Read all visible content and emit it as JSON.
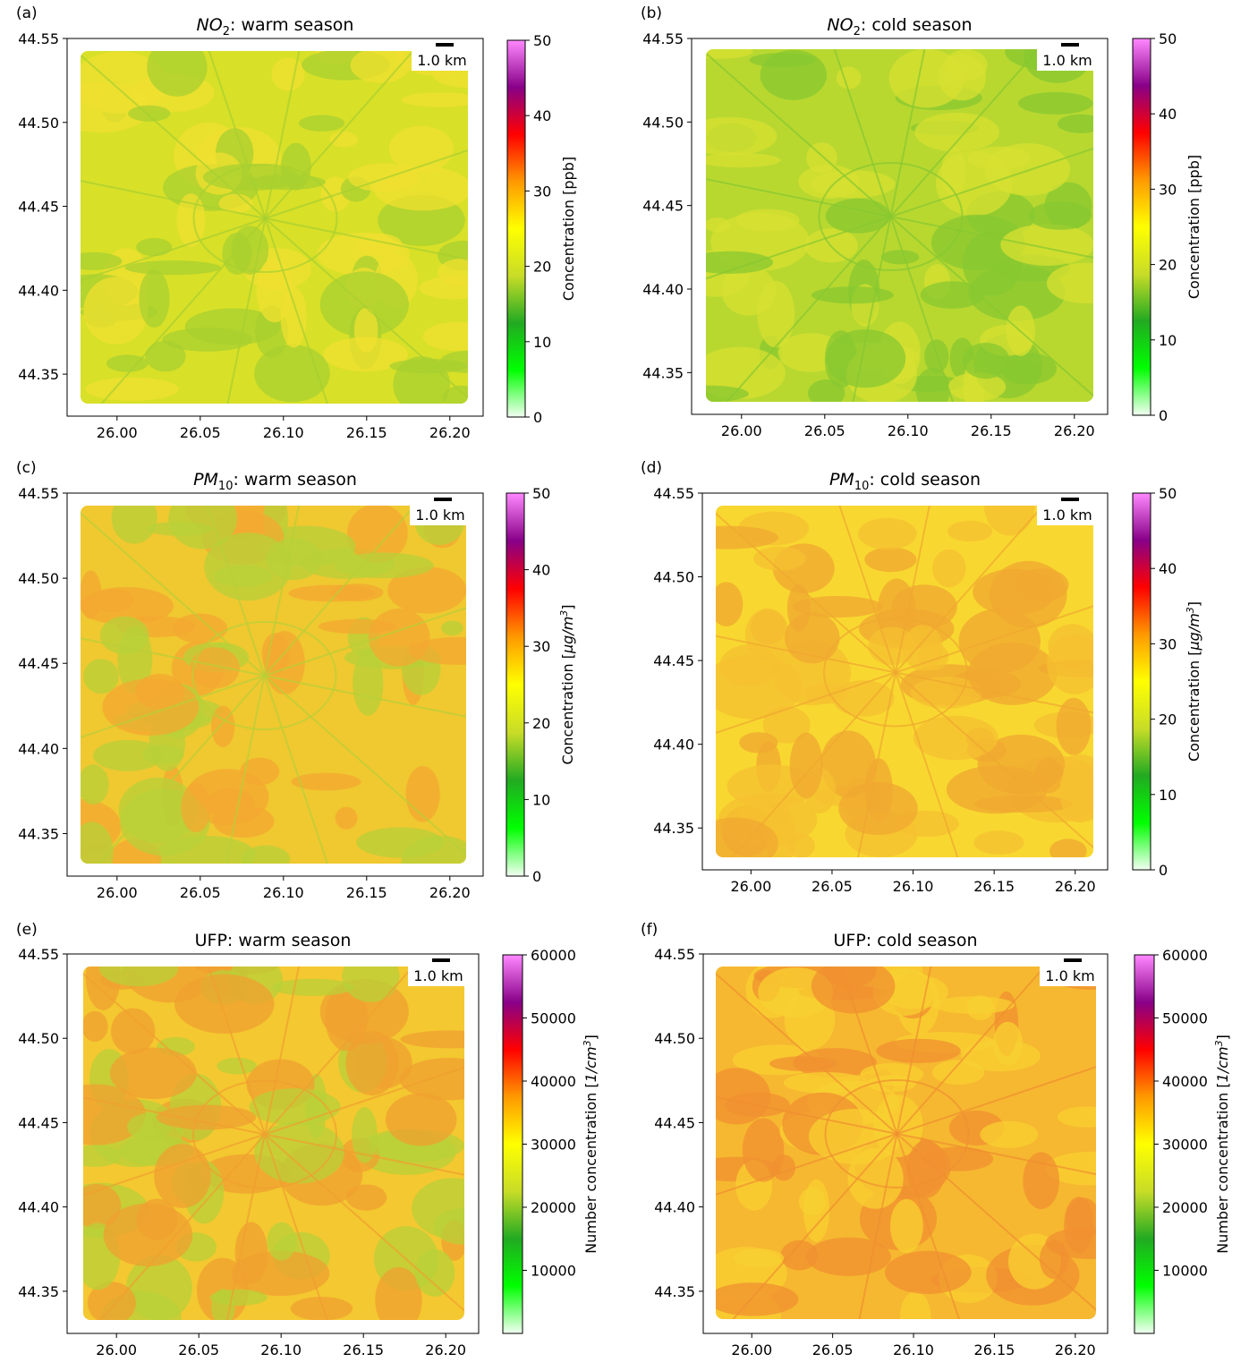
{
  "colors": {
    "gradient": [
      "#f2fff2",
      "#00ff00",
      "#22aa22",
      "#c8dc28",
      "#ffff00",
      "#ff9900",
      "#ff0000",
      "#880088",
      "#ff88ff"
    ]
  },
  "panels": [
    {
      "id": "a",
      "label": "(a)",
      "title_pre": "NO",
      "title_sub": "2",
      "title_post": ": warm season",
      "scalebar_label": "1.0 km",
      "map_fill": [
        "#d8e028",
        "#f0e030",
        "#a8d030"
      ],
      "colorbar": {
        "label_pre": "Concentration [ppb]",
        "label_unit": "",
        "label_sup": "",
        "label_post": "",
        "ticks": [
          "0",
          "10",
          "20",
          "30",
          "40",
          "50"
        ]
      },
      "chart_data": {
        "type": "heatmap",
        "xlim": [
          25.97,
          26.22
        ],
        "ylim": [
          44.325,
          44.55
        ],
        "x_ticks": [
          "26.00",
          "26.05",
          "26.10",
          "26.15",
          "26.20"
        ],
        "y_ticks": [
          "44.35",
          "44.40",
          "44.45",
          "44.50",
          "44.55"
        ],
        "colorbar_range": [
          0,
          50
        ]
      }
    },
    {
      "id": "b",
      "label": "(b)",
      "title_pre": "NO",
      "title_sub": "2",
      "title_post": ": cold season",
      "scalebar_label": "1.0 km",
      "map_fill": [
        "#b8d830",
        "#d8e030",
        "#88c830"
      ],
      "colorbar": {
        "label_pre": "Concentration [ppb]",
        "label_unit": "",
        "label_sup": "",
        "label_post": "",
        "ticks": [
          "0",
          "10",
          "20",
          "30",
          "40",
          "50"
        ]
      },
      "chart_data": {
        "type": "heatmap",
        "xlim": [
          25.97,
          26.22
        ],
        "ylim": [
          44.325,
          44.55
        ],
        "x_ticks": [
          "26.00",
          "26.05",
          "26.10",
          "26.15",
          "26.20"
        ],
        "y_ticks": [
          "44.35",
          "44.40",
          "44.45",
          "44.50",
          "44.55"
        ],
        "colorbar_range": [
          0,
          50
        ]
      }
    },
    {
      "id": "c",
      "label": "(c)",
      "title_pre": "PM",
      "title_sub": "10",
      "title_post": ": warm season",
      "scalebar_label": "1.0 km",
      "map_fill": [
        "#f0c830",
        "#f4a830",
        "#b8d038"
      ],
      "colorbar": {
        "label_pre": "Concentration [",
        "label_unit": "μg/m",
        "label_sup": "3",
        "label_post": "]",
        "ticks": [
          "0",
          "10",
          "20",
          "30",
          "40",
          "50"
        ]
      },
      "chart_data": {
        "type": "heatmap",
        "xlim": [
          25.97,
          26.22
        ],
        "ylim": [
          44.325,
          44.55
        ],
        "x_ticks": [
          "26.00",
          "26.05",
          "26.10",
          "26.15",
          "26.20"
        ],
        "y_ticks": [
          "44.35",
          "44.40",
          "44.45",
          "44.50",
          "44.55"
        ],
        "colorbar_range": [
          0,
          50
        ]
      }
    },
    {
      "id": "d",
      "label": "(d)",
      "title_pre": "PM",
      "title_sub": "10",
      "title_post": ": cold season",
      "scalebar_label": "1.0 km",
      "map_fill": [
        "#f8d830",
        "#f6c030",
        "#f0a830"
      ],
      "colorbar": {
        "label_pre": "Concentration [",
        "label_unit": "μg/m",
        "label_sup": "3",
        "label_post": "]",
        "ticks": [
          "0",
          "10",
          "20",
          "30",
          "40",
          "50"
        ]
      },
      "chart_data": {
        "type": "heatmap",
        "xlim": [
          25.97,
          26.22
        ],
        "ylim": [
          44.325,
          44.55
        ],
        "x_ticks": [
          "26.00",
          "26.05",
          "26.10",
          "26.15",
          "26.20"
        ],
        "y_ticks": [
          "44.35",
          "44.40",
          "44.45",
          "44.50",
          "44.55"
        ],
        "colorbar_range": [
          0,
          50
        ]
      }
    },
    {
      "id": "e",
      "label": "(e)",
      "title_pre": "UFP: warm season",
      "title_sub": "",
      "title_post": "",
      "scalebar_label": "1.0 km",
      "map_fill": [
        "#f4c830",
        "#b8d038",
        "#f0a030"
      ],
      "colorbar": {
        "label_pre": "Number concentration [",
        "label_unit": "1/cm",
        "label_sup": "3",
        "label_post": "]",
        "ticks": [
          "10000",
          "20000",
          "30000",
          "40000",
          "50000",
          "60000"
        ]
      },
      "chart_data": {
        "type": "heatmap",
        "xlim": [
          25.97,
          26.22
        ],
        "ylim": [
          44.325,
          44.55
        ],
        "x_ticks": [
          "26.00",
          "26.05",
          "26.10",
          "26.15",
          "26.20"
        ],
        "y_ticks": [
          "44.35",
          "44.40",
          "44.45",
          "44.50",
          "44.55"
        ],
        "colorbar_range": [
          0,
          60000
        ]
      }
    },
    {
      "id": "f",
      "label": "(f)",
      "title_pre": "UFP: cold season",
      "title_sub": "",
      "title_post": "",
      "scalebar_label": "1.0 km",
      "map_fill": [
        "#f6b830",
        "#f8d030",
        "#f09030"
      ],
      "colorbar": {
        "label_pre": "Number concentration [",
        "label_unit": "1/cm",
        "label_sup": "3",
        "label_post": "]",
        "ticks": [
          "10000",
          "20000",
          "30000",
          "40000",
          "50000",
          "60000"
        ]
      },
      "chart_data": {
        "type": "heatmap",
        "xlim": [
          25.97,
          26.22
        ],
        "ylim": [
          44.325,
          44.55
        ],
        "x_ticks": [
          "26.00",
          "26.05",
          "26.10",
          "26.15",
          "26.20"
        ],
        "y_ticks": [
          "44.35",
          "44.40",
          "44.45",
          "44.50",
          "44.55"
        ],
        "colorbar_range": [
          0,
          60000
        ]
      }
    }
  ]
}
